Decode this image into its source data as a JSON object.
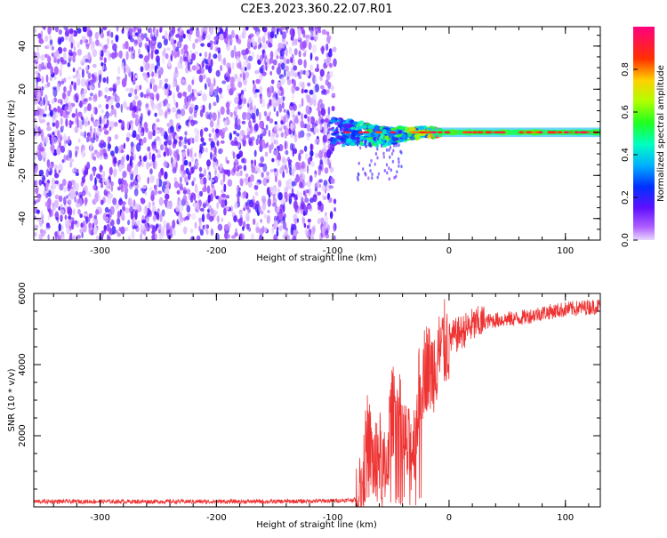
{
  "title": "C2E3.2023.360.22.07.R01",
  "colors": {
    "snr_line": "#ee3333",
    "frame": "#000000",
    "background": "#ffffff"
  },
  "chart_data": [
    {
      "type": "heatmap",
      "title": "C2E3.2023.360.22.07.R01",
      "xlabel": "Height of straight line (km)",
      "ylabel": "Frequency (Hz)",
      "xlim": [
        -357,
        130
      ],
      "ylim": [
        -50,
        49
      ],
      "xticks": [
        -300,
        -200,
        -100,
        0,
        100
      ],
      "yticks": [
        -40,
        -20,
        0,
        20,
        40
      ],
      "tick_labels_x": [
        "-300",
        "-200",
        "-100",
        "0",
        "100"
      ],
      "tick_labels_y": [
        "-40",
        "-20",
        "0",
        "20",
        "40"
      ],
      "noise_region": {
        "x_start": -357,
        "x_end": -98,
        "description": "broadband speckle"
      },
      "signal_band": [
        {
          "x": -100,
          "freq": 0,
          "width_hz": 6,
          "amplitude": 0.3
        },
        {
          "x": -80,
          "freq": 0,
          "width_hz": 5,
          "amplitude": 0.45
        },
        {
          "x": -60,
          "freq": -2,
          "width_hz": 4,
          "amplitude": 0.55
        },
        {
          "x": -40,
          "freq": -1,
          "width_hz": 3,
          "amplitude": 0.6
        },
        {
          "x": -20,
          "freq": 0,
          "width_hz": 2,
          "amplitude": 0.75
        },
        {
          "x": -10,
          "freq": 0,
          "width_hz": 2,
          "amplitude": 0.85
        },
        {
          "x": 50,
          "freq": 0,
          "width_hz": 2,
          "amplitude": 0.95
        },
        {
          "x": 130,
          "freq": 0,
          "width_hz": 2,
          "amplitude": 0.95
        }
      ],
      "colorbar": {
        "label": "Normalized spectral amplitude",
        "range": [
          0.0,
          1.0
        ],
        "ticks": [
          "0.0",
          "0.2",
          "0.4",
          "0.6",
          "0.8"
        ],
        "tick_values": [
          0.0,
          0.2,
          0.4,
          0.6,
          0.8
        ]
      }
    },
    {
      "type": "line",
      "xlabel": "Height of straight line (km)",
      "ylabel": "SNR (10 * v/v)",
      "xlim": [
        -357,
        130
      ],
      "ylim": [
        0,
        6000
      ],
      "xticks": [
        -300,
        -200,
        -100,
        0,
        100
      ],
      "yticks": [
        2000,
        4000,
        6000
      ],
      "tick_labels_x": [
        "-300",
        "-200",
        "-100",
        "0",
        "100"
      ],
      "tick_labels_y": [
        "2000",
        "4000",
        "6000"
      ],
      "series": [
        {
          "name": "SNR",
          "x": [
            -357,
            -300,
            -250,
            -200,
            -150,
            -100,
            -80,
            -75,
            -70,
            -65,
            -60,
            -55,
            -50,
            -45,
            -40,
            -35,
            -30,
            -25,
            -20,
            -15,
            -10,
            -5,
            0,
            10,
            20,
            30,
            40,
            60,
            80,
            100,
            130
          ],
          "y": [
            150,
            150,
            150,
            150,
            150,
            170,
            200,
            500,
            2000,
            1200,
            1500,
            800,
            2500,
            3000,
            2000,
            1500,
            1800,
            3500,
            4000,
            3800,
            4200,
            4500,
            4700,
            4900,
            5100,
            5200,
            5250,
            5300,
            5450,
            5550,
            5650
          ]
        }
      ]
    }
  ]
}
